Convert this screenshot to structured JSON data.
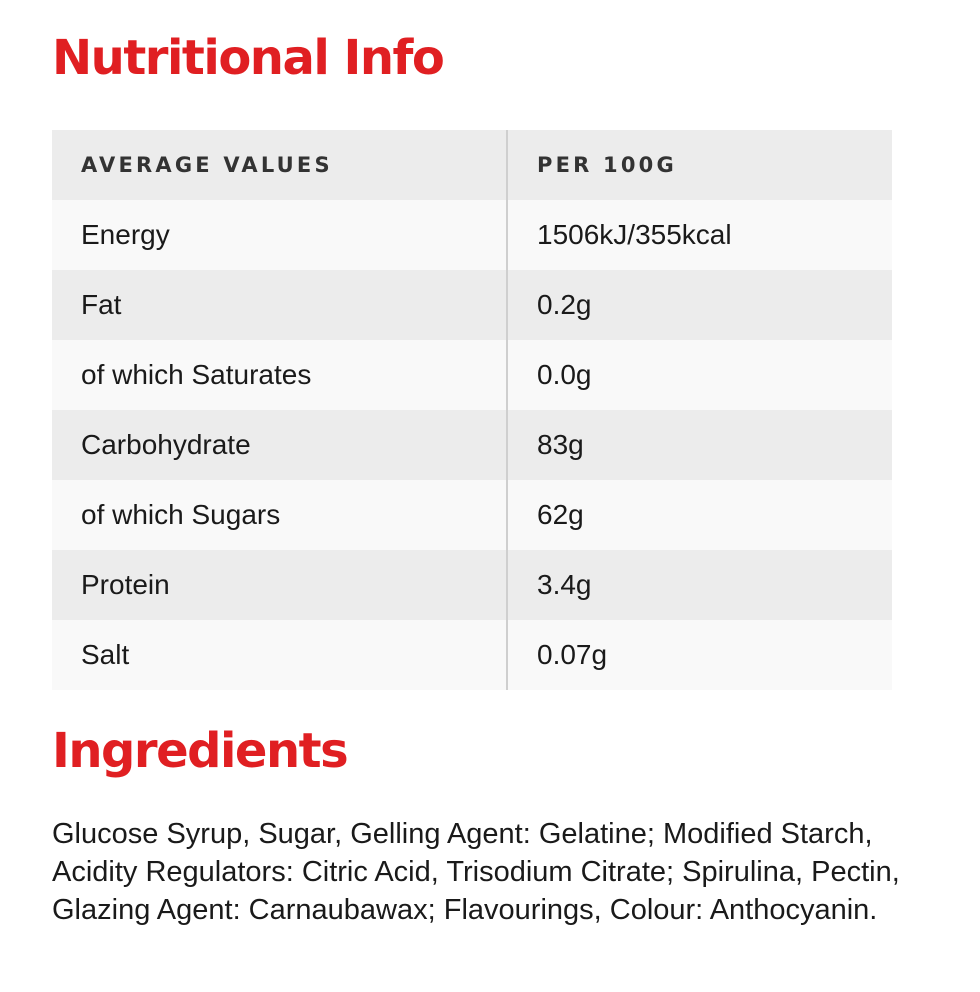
{
  "nutrition": {
    "heading": "Nutritional Info",
    "columns": [
      "AVERAGE VALUES",
      "PER 100G"
    ],
    "rows": [
      {
        "label": "Energy",
        "value": "1506kJ/355kcal"
      },
      {
        "label": "Fat",
        "value": "0.2g"
      },
      {
        "label": "of which Saturates",
        "value": "0.0g"
      },
      {
        "label": "Carbohydrate",
        "value": "83g"
      },
      {
        "label": "of which Sugars",
        "value": "62g"
      },
      {
        "label": "Protein",
        "value": "3.4g"
      },
      {
        "label": "Salt",
        "value": "0.07g"
      }
    ]
  },
  "ingredients": {
    "heading": "Ingredients",
    "text": "Glucose Syrup, Sugar, Gelling Agent: Gelatine; Modified Starch, Acidity Regulators: Citric Acid, Trisodium Citrate; Spirulina, Pectin, Glazing Agent: Carnaubawax; Flavourings, Colour: Anthocyanin."
  },
  "colors": {
    "heading_red": "#e01f22",
    "row_dark": "#ececec",
    "row_light": "#f9f9f9",
    "divider": "#cfcfcf"
  }
}
